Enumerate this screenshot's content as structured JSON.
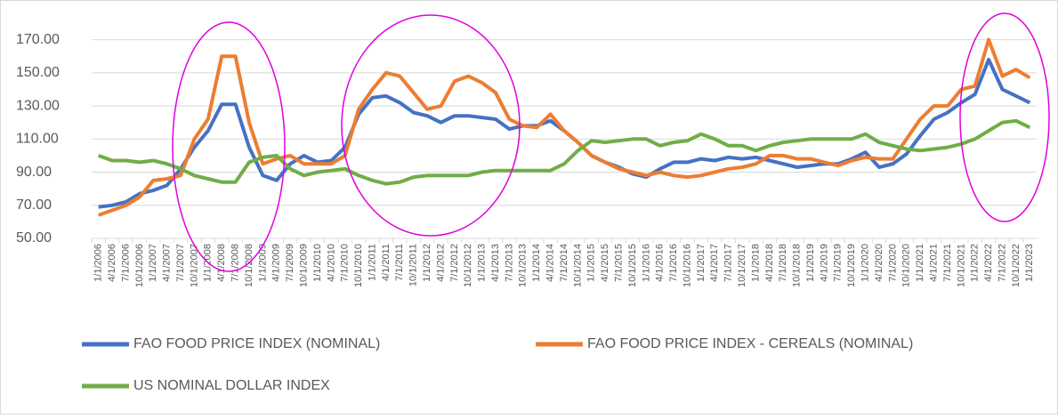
{
  "chart_data": {
    "type": "line",
    "categories": [
      "1/1/2006",
      "4/1/2006",
      "7/1/2006",
      "10/1/2006",
      "1/1/2007",
      "4/1/2007",
      "7/1/2007",
      "10/1/2007",
      "1/1/2008",
      "4/1/2008",
      "7/1/2008",
      "10/1/2008",
      "1/1/2009",
      "4/1/2009",
      "7/1/2009",
      "10/1/2009",
      "1/1/2010",
      "4/1/2010",
      "7/1/2010",
      "10/1/2010",
      "1/1/2011",
      "4/1/2011",
      "7/1/2011",
      "10/1/2011",
      "1/1/2012",
      "4/1/2012",
      "7/1/2012",
      "10/1/2012",
      "1/1/2013",
      "4/1/2013",
      "7/1/2013",
      "10/1/2013",
      "1/1/2014",
      "4/1/2014",
      "7/1/2014",
      "10/1/2014",
      "1/1/2015",
      "4/1/2015",
      "7/1/2015",
      "10/1/2015",
      "1/1/2016",
      "4/1/2016",
      "7/1/2016",
      "10/1/2016",
      "1/1/2017",
      "4/1/2017",
      "7/1/2017",
      "10/1/2017",
      "1/1/2018",
      "4/1/2018",
      "7/1/2018",
      "10/1/2018",
      "1/1/2019",
      "4/1/2019",
      "7/1/2019",
      "10/1/2019",
      "1/1/2020",
      "4/1/2020",
      "7/1/2020",
      "10/1/2020",
      "1/1/2021",
      "4/1/2021",
      "7/1/2021",
      "10/1/2021",
      "1/1/2022",
      "4/1/2022",
      "7/1/2022",
      "10/1/2022",
      "1/1/2023"
    ],
    "series": [
      {
        "name": "FAO FOOD PRICE INDEX (NOMINAL)",
        "color": "#4472c4",
        "values": [
          69,
          70,
          72,
          77,
          79,
          82,
          92,
          105,
          115,
          131,
          131,
          105,
          88,
          85,
          95,
          100,
          96,
          97,
          105,
          125,
          135,
          136,
          132,
          126,
          124,
          120,
          124,
          124,
          123,
          122,
          116,
          118,
          118,
          121,
          115,
          108,
          100,
          96,
          93,
          89,
          87,
          92,
          96,
          96,
          98,
          97,
          99,
          98,
          99,
          97,
          95,
          93,
          94,
          95,
          95,
          98,
          102,
          93,
          95,
          101,
          112,
          122,
          126,
          132,
          137,
          158,
          140,
          136,
          132
        ]
      },
      {
        "name": "FAO FOOD PRICE INDEX - CEREALS (NOMINAL)",
        "color": "#ed7d31",
        "values": [
          64,
          67,
          70,
          75,
          85,
          86,
          88,
          110,
          122,
          160,
          160,
          120,
          95,
          98,
          100,
          95,
          95,
          95,
          100,
          128,
          140,
          150,
          148,
          138,
          128,
          130,
          145,
          148,
          144,
          138,
          122,
          118,
          117,
          125,
          115,
          108,
          100,
          96,
          92,
          90,
          88,
          90,
          88,
          87,
          88,
          90,
          92,
          93,
          95,
          100,
          100,
          98,
          98,
          96,
          94,
          97,
          99,
          98,
          98,
          110,
          122,
          130,
          130,
          140,
          142,
          170,
          148,
          152,
          147
        ]
      },
      {
        "name": "US NOMINAL DOLLAR INDEX",
        "color": "#70ad47",
        "values": [
          100,
          97,
          97,
          96,
          97,
          95,
          92,
          88,
          86,
          84,
          84,
          96,
          99,
          100,
          92,
          88,
          90,
          91,
          92,
          88,
          85,
          83,
          84,
          87,
          88,
          88,
          88,
          88,
          90,
          91,
          91,
          91,
          91,
          91,
          95,
          103,
          109,
          108,
          109,
          110,
          110,
          106,
          108,
          109,
          113,
          110,
          106,
          106,
          103,
          106,
          108,
          109,
          110,
          110,
          110,
          110,
          113,
          108,
          106,
          104,
          103,
          104,
          105,
          107,
          110,
          115,
          120,
          121,
          117
        ]
      }
    ],
    "ylim": [
      50,
      180
    ],
    "yticks": [
      {
        "value": 50,
        "label": "50.00"
      },
      {
        "value": 70,
        "label": "70.00"
      },
      {
        "value": 90,
        "label": "90.00"
      },
      {
        "value": 110,
        "label": "110.00"
      },
      {
        "value": 130,
        "label": "130.00"
      },
      {
        "value": 150,
        "label": "150.00"
      },
      {
        "value": 170,
        "label": "170.00"
      }
    ],
    "grid": true,
    "legend": "bottom"
  }
}
